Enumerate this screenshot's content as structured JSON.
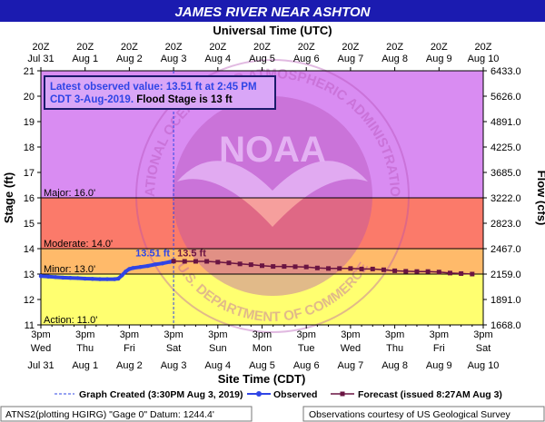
{
  "colors": {
    "page_bg": "#ffffff",
    "title_bar": "#1b1bb0",
    "zone_major": "#d98cf2",
    "zone_flood": "#fb7a6a",
    "zone_moderate": "#ffba6a",
    "zone_minor": "#ffff70",
    "zone_action": "#ffff70",
    "observed": "#2f45e6",
    "forecast": "#6a1442",
    "observed_label": "#2f45e6",
    "forecast_label": "#6a1442",
    "annotation_box": "#d9a6f7",
    "annotation_border": "#1b1b6b",
    "watermark": "#b34db3"
  },
  "header": {
    "title": "JAMES RIVER NEAR ASHTON",
    "top_axis_title": "Universal Time (UTC)"
  },
  "watermark": {
    "text_ring": "NATIONAL OCEANIC AND ATMOSPHERIC ADMINISTRATION",
    "text_bottom": "U.S. DEPARTMENT OF COMMERCE",
    "logo_text": "NOAA"
  },
  "annotation": {
    "line1": "Latest observed value: 13.51 ft at 2:45 PM",
    "line2_blue": "CDT 3-Aug-2019.",
    "line2_black": " Flood Stage is 13 ft"
  },
  "legend": {
    "graph_created": "Graph Created (3:30PM Aug 3, 2019)",
    "observed": "Observed",
    "forecast": "Forecast (issued 8:27AM Aug 3)"
  },
  "footer": {
    "left": "ATNS2(plotting HGIRG) \"Gage 0\" Datum: 1244.4'",
    "right": "Observations courtesy of US Geological Survey"
  },
  "chart_data": {
    "type": "line",
    "title": "JAMES RIVER NEAR ASHTON",
    "xlabel": "Site Time (CDT)",
    "ylabel": "Stage (ft)",
    "y2label": "Flow (cfs)",
    "x2label": "Universal Time (UTC)",
    "ylim": [
      11,
      21
    ],
    "xlim_hours": [
      0,
      240
    ],
    "grid": false,
    "legend_position": "bottom",
    "bottom_ticks": [
      {
        "line1": "3pm",
        "line2": "Wed",
        "line3": "Jul 31"
      },
      {
        "line1": "3pm",
        "line2": "Thu",
        "line3": "Aug 1"
      },
      {
        "line1": "3pm",
        "line2": "Fri",
        "line3": "Aug 2"
      },
      {
        "line1": "3pm",
        "line2": "Sat",
        "line3": "Aug 3"
      },
      {
        "line1": "3pm",
        "line2": "Sun",
        "line3": "Aug 4"
      },
      {
        "line1": "3pm",
        "line2": "Mon",
        "line3": "Aug 5"
      },
      {
        "line1": "3pm",
        "line2": "Tue",
        "line3": "Aug 6"
      },
      {
        "line1": "3pm",
        "line2": "Wed",
        "line3": "Aug 7"
      },
      {
        "line1": "3pm",
        "line2": "Thu",
        "line3": "Aug 8"
      },
      {
        "line1": "3pm",
        "line2": "Fri",
        "line3": "Aug 9"
      },
      {
        "line1": "3pm",
        "line2": "Sat",
        "line3": "Aug 10"
      }
    ],
    "top_ticks": [
      {
        "line1": "20Z",
        "line2": "Jul 31"
      },
      {
        "line1": "20Z",
        "line2": "Aug 1"
      },
      {
        "line1": "20Z",
        "line2": "Aug 2"
      },
      {
        "line1": "20Z",
        "line2": "Aug 3"
      },
      {
        "line1": "20Z",
        "line2": "Aug 4"
      },
      {
        "line1": "20Z",
        "line2": "Aug 5"
      },
      {
        "line1": "20Z",
        "line2": "Aug 6"
      },
      {
        "line1": "20Z",
        "line2": "Aug 7"
      },
      {
        "line1": "20Z",
        "line2": "Aug 8"
      },
      {
        "line1": "20Z",
        "line2": "Aug 9"
      },
      {
        "line1": "20Z",
        "line2": "Aug 10"
      }
    ],
    "y_ticks": [
      11,
      12,
      13,
      14,
      15,
      16,
      17,
      18,
      19,
      20,
      21
    ],
    "y2_ticks": [
      {
        "stage": 11,
        "label": "1668.0"
      },
      {
        "stage": 12,
        "label": "1891.0"
      },
      {
        "stage": 13,
        "label": "2159.0"
      },
      {
        "stage": 14,
        "label": "2467.0"
      },
      {
        "stage": 15,
        "label": "2823.0"
      },
      {
        "stage": 16,
        "label": "3222.0"
      },
      {
        "stage": 17,
        "label": "3685.0"
      },
      {
        "stage": 18,
        "label": "4225.0"
      },
      {
        "stage": 19,
        "label": "4891.0"
      },
      {
        "stage": 20,
        "label": "5626.0"
      },
      {
        "stage": 21,
        "label": "6433.0"
      }
    ],
    "zones": [
      {
        "name": "major",
        "from": 16,
        "to": 21
      },
      {
        "name": "flood",
        "from": 14,
        "to": 16
      },
      {
        "name": "moderate",
        "from": 13,
        "to": 14
      },
      {
        "name": "minor",
        "from": 11,
        "to": 13
      }
    ],
    "thresholds": [
      {
        "label": "Major: 16.0'",
        "value": 16
      },
      {
        "label": "Moderate: 14.0'",
        "value": 14
      },
      {
        "label": "Minor: 13.0'",
        "value": 13
      },
      {
        "label": "Action: 11.0'",
        "value": 11
      }
    ],
    "graph_created_hour": 72,
    "observed_label": "13.51 ft",
    "forecast_label": "13.5 ft",
    "series": [
      {
        "name": "Observed",
        "points": [
          [
            0,
            12.92
          ],
          [
            4,
            12.9
          ],
          [
            8,
            12.88
          ],
          [
            12,
            12.86
          ],
          [
            16,
            12.85
          ],
          [
            20,
            12.84
          ],
          [
            24,
            12.82
          ],
          [
            28,
            12.81
          ],
          [
            32,
            12.8
          ],
          [
            36,
            12.8
          ],
          [
            40,
            12.8
          ],
          [
            42,
            12.82
          ],
          [
            44,
            12.95
          ],
          [
            46,
            13.1
          ],
          [
            48,
            13.2
          ],
          [
            50,
            13.24
          ],
          [
            54,
            13.28
          ],
          [
            58,
            13.32
          ],
          [
            62,
            13.38
          ],
          [
            66,
            13.42
          ],
          [
            70,
            13.48
          ],
          [
            72,
            13.51
          ]
        ]
      },
      {
        "name": "Forecast",
        "points": [
          [
            72,
            13.51
          ],
          [
            78,
            13.5
          ],
          [
            84,
            13.5
          ],
          [
            90,
            13.5
          ],
          [
            96,
            13.47
          ],
          [
            102,
            13.44
          ],
          [
            108,
            13.4
          ],
          [
            114,
            13.37
          ],
          [
            120,
            13.33
          ],
          [
            126,
            13.3
          ],
          [
            132,
            13.3
          ],
          [
            138,
            13.29
          ],
          [
            144,
            13.28
          ],
          [
            150,
            13.24
          ],
          [
            156,
            13.22
          ],
          [
            162,
            13.22
          ],
          [
            168,
            13.22
          ],
          [
            174,
            13.2
          ],
          [
            180,
            13.2
          ],
          [
            186,
            13.17
          ],
          [
            192,
            13.13
          ],
          [
            198,
            13.11
          ],
          [
            204,
            13.1
          ],
          [
            210,
            13.1
          ],
          [
            216,
            13.08
          ],
          [
            222,
            13.04
          ],
          [
            228,
            13.02
          ],
          [
            234,
            13.0
          ]
        ]
      }
    ]
  }
}
